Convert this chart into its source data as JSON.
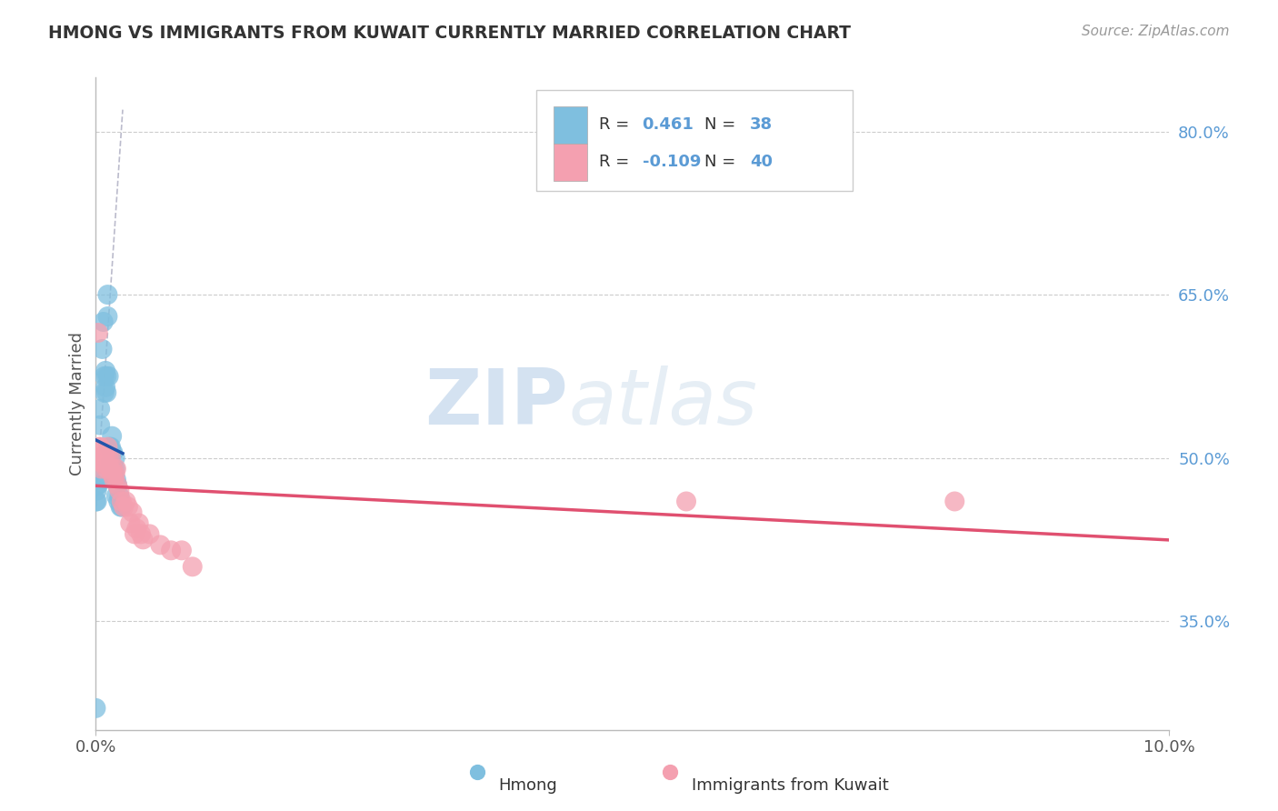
{
  "title": "HMONG VS IMMIGRANTS FROM KUWAIT CURRENTLY MARRIED CORRELATION CHART",
  "source": "Source: ZipAtlas.com",
  "ylabel_label": "Currently Married",
  "x_min": 0.0,
  "x_max": 0.1,
  "y_min": 0.25,
  "y_max": 0.85,
  "x_tick_positions": [
    0.0,
    0.1
  ],
  "x_tick_labels": [
    "0.0%",
    "10.0%"
  ],
  "y_tick_labels_right": [
    "80.0%",
    "65.0%",
    "50.0%",
    "35.0%"
  ],
  "y_tick_positions_right": [
    0.8,
    0.65,
    0.5,
    0.35
  ],
  "hmong_color": "#7fbfdf",
  "kuwait_color": "#f4a0b0",
  "hmong_R": 0.461,
  "hmong_N": 38,
  "kuwait_R": -0.109,
  "kuwait_N": 40,
  "hmong_line_color": "#2255aa",
  "kuwait_line_color": "#e05070",
  "diagonal_color": "#bbbbcc",
  "background_color": "#ffffff",
  "grid_color": "#cccccc",
  "watermark_zip": "ZIP",
  "watermark_atlas": "atlas",
  "legend_R_color": "#5b9bd5",
  "legend_N_color": "#5b9bd5",
  "legend_text_color": "#333333",
  "hmong_x": [
    0.0002,
    0.0004,
    0.0004,
    0.0005,
    0.0006,
    0.0007,
    0.0008,
    0.0008,
    0.0009,
    0.0009,
    0.001,
    0.001,
    0.0011,
    0.0011,
    0.0012,
    0.0013,
    0.0013,
    0.0014,
    0.0014,
    0.0015,
    0.0015,
    0.0016,
    0.0016,
    0.0017,
    0.0018,
    0.0018,
    0.0019,
    0.0019,
    0.002,
    0.0021,
    0.0022,
    0.0023,
    0.0024,
    0.0001,
    0.0001,
    0.0001,
    0.0,
    0.0
  ],
  "hmong_y": [
    0.475,
    0.53,
    0.545,
    0.48,
    0.6,
    0.625,
    0.56,
    0.575,
    0.565,
    0.58,
    0.56,
    0.575,
    0.63,
    0.65,
    0.575,
    0.49,
    0.51,
    0.495,
    0.51,
    0.505,
    0.52,
    0.49,
    0.505,
    0.48,
    0.49,
    0.5,
    0.465,
    0.48,
    0.475,
    0.46,
    0.465,
    0.455,
    0.455,
    0.46,
    0.47,
    0.475,
    0.27,
    0.46
  ],
  "kuwait_x": [
    0.0001,
    0.0002,
    0.0003,
    0.0004,
    0.0005,
    0.0006,
    0.0007,
    0.0008,
    0.0009,
    0.001,
    0.0011,
    0.0012,
    0.0013,
    0.0014,
    0.0015,
    0.0016,
    0.0017,
    0.0018,
    0.0019,
    0.002,
    0.0022,
    0.0024,
    0.0026,
    0.0028,
    0.003,
    0.0032,
    0.0034,
    0.0036,
    0.0038,
    0.004,
    0.0042,
    0.0044,
    0.005,
    0.006,
    0.007,
    0.008,
    0.009,
    0.08,
    0.055,
    0.0001
  ],
  "kuwait_y": [
    0.5,
    0.615,
    0.51,
    0.51,
    0.49,
    0.495,
    0.5,
    0.495,
    0.5,
    0.49,
    0.51,
    0.5,
    0.49,
    0.5,
    0.485,
    0.49,
    0.48,
    0.485,
    0.49,
    0.475,
    0.47,
    0.46,
    0.455,
    0.46,
    0.455,
    0.44,
    0.45,
    0.43,
    0.435,
    0.44,
    0.43,
    0.425,
    0.43,
    0.42,
    0.415,
    0.415,
    0.4,
    0.46,
    0.46,
    0.5
  ]
}
